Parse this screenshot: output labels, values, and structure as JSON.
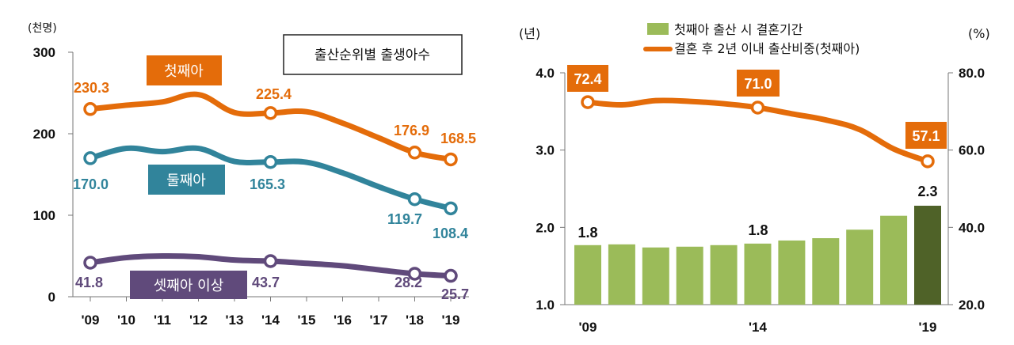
{
  "chart_data": [
    {
      "type": "line",
      "title": "출산순위별 출생아수",
      "y_unit": "(천명)",
      "ylim": [
        0,
        300
      ],
      "yticks": [
        "0",
        "100",
        "200",
        "300"
      ],
      "categories": [
        "'09",
        "'10",
        "'11",
        "'12",
        "'13",
        "'14",
        "'15",
        "'16",
        "'17",
        "'18",
        "'19"
      ],
      "marked_categories": [
        "'09",
        "'14",
        "'18",
        "'19"
      ],
      "series": [
        {
          "name": "첫째아",
          "color": "#E46C0A",
          "values": [
            230.3,
            235,
            239,
            248,
            226,
            225.4,
            227,
            213,
            195,
            176.9,
            168.5
          ],
          "labels": [
            "230.3",
            "225.4",
            "176.9",
            "168.5"
          ]
        },
        {
          "name": "둘째아",
          "color": "#31849B",
          "values": [
            170.0,
            182,
            178,
            182,
            166,
            165.3,
            165,
            152,
            135,
            119.7,
            108.4
          ],
          "labels": [
            "170.0",
            "165.3",
            "119.7",
            "108.4"
          ]
        },
        {
          "name": "셋째아 이상",
          "color": "#604A7B",
          "values": [
            41.8,
            48,
            50,
            49,
            45,
            43.7,
            41,
            38,
            33,
            28.2,
            25.7
          ],
          "labels": [
            "41.8",
            "43.7",
            "28.2",
            "25.7"
          ]
        }
      ]
    },
    {
      "type": "bar+line",
      "y_left_unit": "(년)",
      "y_right_unit": "(%)",
      "ylim_left": [
        1.0,
        4.0
      ],
      "ylim_right": [
        20.0,
        80.0
      ],
      "yticks_left": [
        "1.0",
        "2.0",
        "3.0",
        "4.0"
      ],
      "yticks_right": [
        "20.0",
        "40.0",
        "60.0",
        "80.0"
      ],
      "x_labels": [
        "'09",
        "'14",
        "'19"
      ],
      "bar_series": {
        "name": "첫째아 출산 시 결혼기간",
        "color": "#9BBB59",
        "highlight_color": "#4F6228",
        "values": [
          1.77,
          1.78,
          1.74,
          1.75,
          1.77,
          1.79,
          1.83,
          1.86,
          1.97,
          2.15,
          2.28
        ],
        "labels": [
          "1.8",
          "1.8",
          "2.3"
        ]
      },
      "line_series": {
        "name": "결혼 후 2년 이내 출산비중(첫째아)",
        "color": "#E46C0A",
        "values": [
          72.4,
          71.7,
          72.8,
          72.6,
          72.0,
          71.0,
          69.4,
          67.8,
          65.3,
          60.3,
          57.1
        ],
        "labels": [
          "72.4",
          "71.0",
          "57.1"
        ]
      }
    }
  ]
}
